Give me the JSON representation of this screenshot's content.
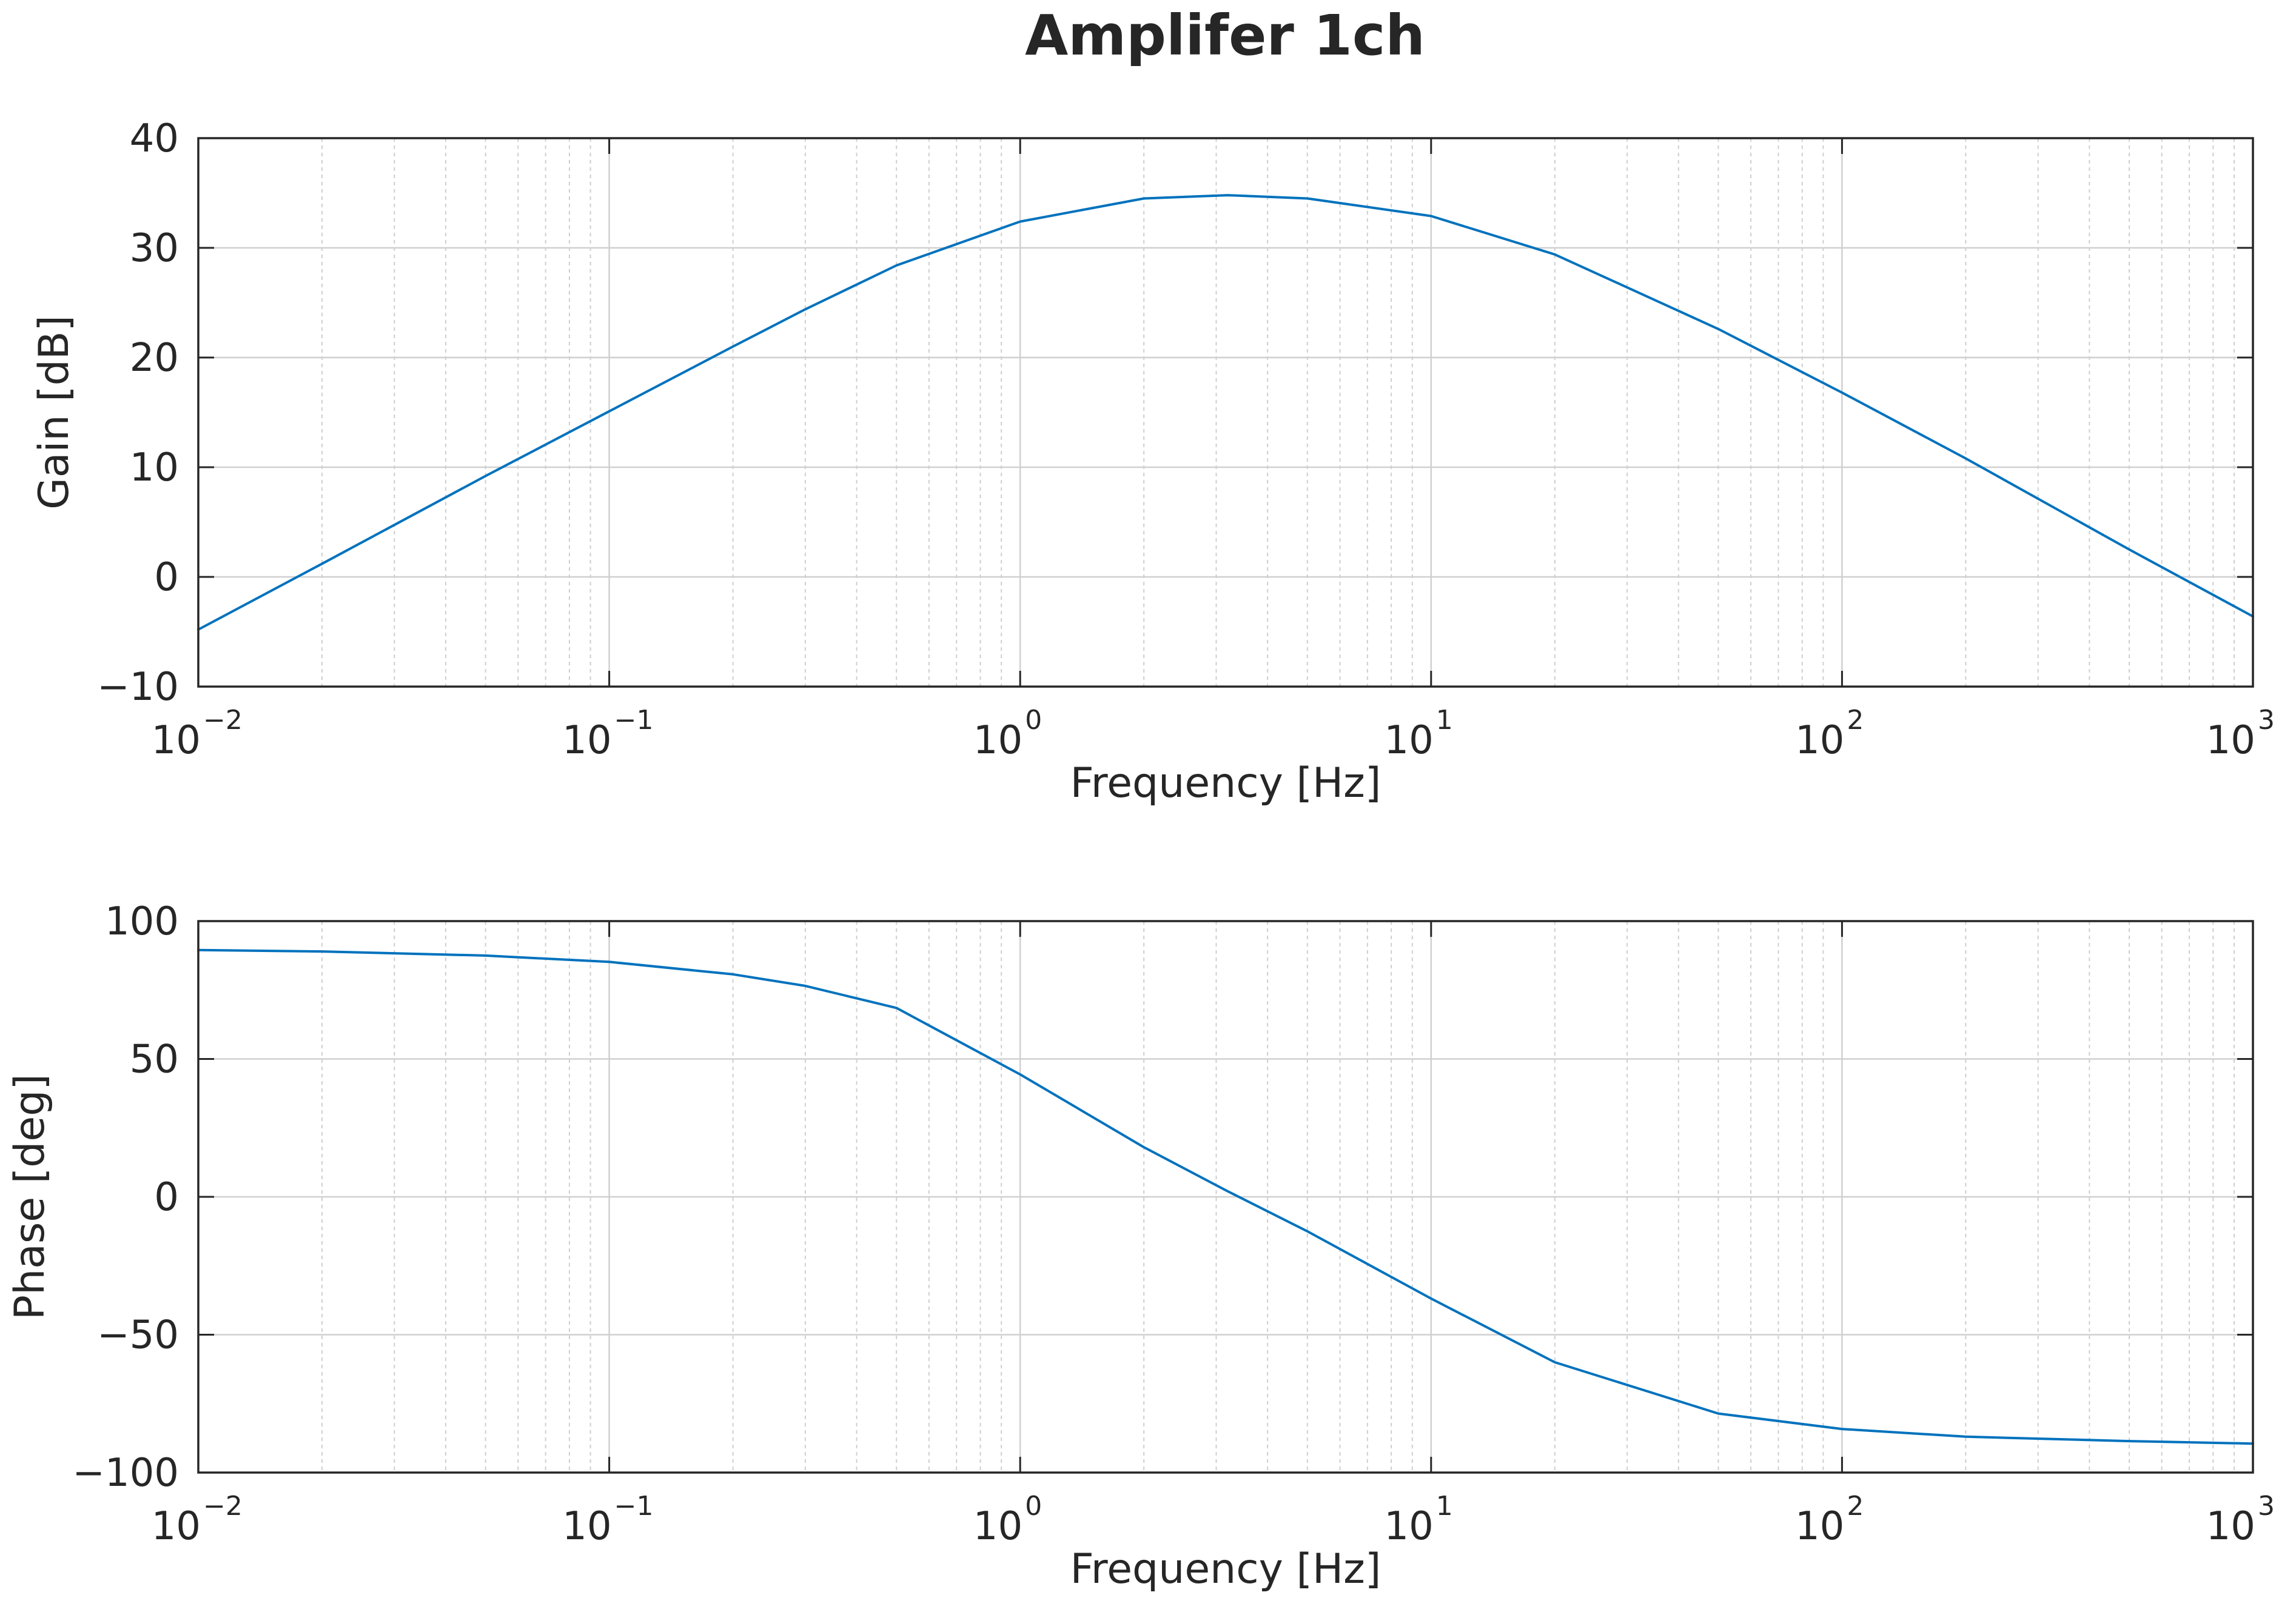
{
  "figure_title": "Amplifer 1ch",
  "colors": {
    "line": "#0072BD",
    "axis": "#262626",
    "major_grid": "#d0d0d0",
    "minor_grid": "#cfcfcf",
    "background": "#ffffff"
  },
  "chart_data": [
    {
      "type": "line",
      "title": "Amplifer 1ch",
      "xlabel": "Frequency [Hz]",
      "ylabel": "Gain [dB]",
      "xscale": "log",
      "xlim": [
        0.01,
        1000
      ],
      "ylim": [
        -10,
        40
      ],
      "x_ticks": [
        0.01,
        0.1,
        1,
        10,
        100,
        1000
      ],
      "x_tick_labels": [
        {
          "base": "10",
          "exp": "−2"
        },
        {
          "base": "10",
          "exp": "−1"
        },
        {
          "base": "10",
          "exp": "0"
        },
        {
          "base": "10",
          "exp": "1"
        },
        {
          "base": "10",
          "exp": "2"
        },
        {
          "base": "10",
          "exp": "3"
        }
      ],
      "y_ticks": [
        -10,
        0,
        10,
        20,
        30,
        40
      ],
      "y_tick_labels": [
        "−10",
        "0",
        "10",
        "20",
        "30",
        "40"
      ],
      "grid": true,
      "minor_grid": true,
      "series": [
        {
          "x": [
            0.01,
            0.02,
            0.05,
            0.1,
            0.2,
            0.3,
            0.5,
            1,
            2,
            3.2,
            5,
            10,
            20,
            50,
            100,
            200,
            500,
            1000
          ],
          "y": [
            -4.8,
            1.2,
            9.2,
            15.1,
            21.0,
            24.4,
            28.4,
            32.4,
            34.5,
            34.8,
            34.5,
            32.9,
            29.4,
            22.6,
            16.8,
            10.8,
            2.5,
            -3.6
          ]
        }
      ]
    },
    {
      "type": "line",
      "title": "",
      "xlabel": "Frequency [Hz]",
      "ylabel": "Phase [deg]",
      "xscale": "log",
      "xlim": [
        0.01,
        1000
      ],
      "ylim": [
        -100,
        100
      ],
      "x_ticks": [
        0.01,
        0.1,
        1,
        10,
        100,
        1000
      ],
      "x_tick_labels": [
        {
          "base": "10",
          "exp": "−2"
        },
        {
          "base": "10",
          "exp": "−1"
        },
        {
          "base": "10",
          "exp": "0"
        },
        {
          "base": "10",
          "exp": "1"
        },
        {
          "base": "10",
          "exp": "2"
        },
        {
          "base": "10",
          "exp": "3"
        }
      ],
      "y_ticks": [
        -100,
        -50,
        0,
        50,
        100
      ],
      "y_tick_labels": [
        "−100",
        "−50",
        "0",
        "50",
        "100"
      ],
      "grid": true,
      "minor_grid": true,
      "series": [
        {
          "x": [
            0.01,
            0.02,
            0.05,
            0.1,
            0.2,
            0.3,
            0.5,
            1,
            2,
            3.2,
            5,
            10,
            20,
            50,
            100,
            200,
            500,
            1000
          ],
          "y": [
            89.5,
            89.0,
            87.5,
            85.2,
            80.7,
            76.5,
            68.5,
            44.4,
            18.0,
            2.0,
            -12.5,
            -36.9,
            -60.0,
            -78.6,
            -84.2,
            -87.0,
            -88.6,
            -89.5
          ]
        }
      ]
    }
  ]
}
